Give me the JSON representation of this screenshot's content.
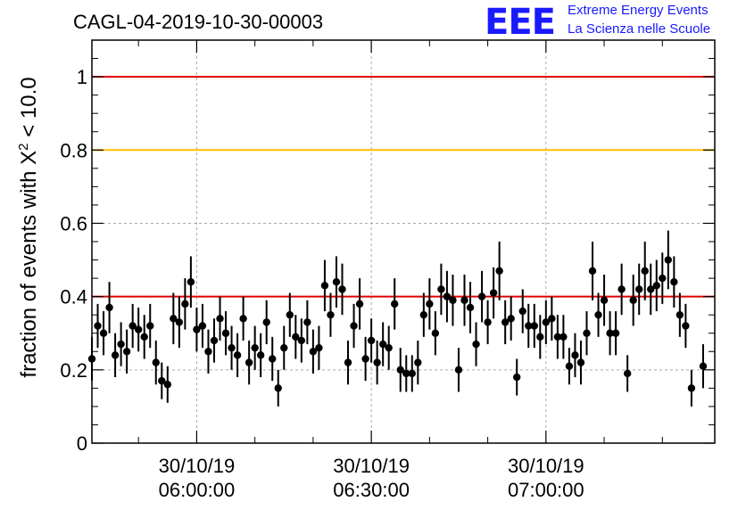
{
  "header": {
    "title": "CAGL-04-2019-10-30-00003",
    "logo_mark": "EEE",
    "logo_line1": "Extreme Energy Events",
    "logo_line2": "La Scienza nelle Scuole"
  },
  "chart_data": {
    "type": "scatter",
    "ylabel": "fraction of events with X² < 10.0",
    "ylabel_parts": {
      "pre": "fraction of events with X",
      "sup": "2",
      "post": " < 10.0"
    },
    "ylim": [
      0,
      1.1
    ],
    "yticks": [
      0,
      0.2,
      0.4,
      0.6,
      0.8,
      1
    ],
    "ytick_labels": [
      "0",
      "0.2",
      "0.4",
      "0.6",
      "0.8",
      "1"
    ],
    "xlim": [
      "05:42:00",
      "07:29:00"
    ],
    "xticks": [
      "06:00:00",
      "06:30:00",
      "07:00:00"
    ],
    "xtick_labels": [
      [
        "30/10/19",
        "06:00:00"
      ],
      [
        "30/10/19",
        "06:30:00"
      ],
      [
        "30/10/19",
        "07:00:00"
      ]
    ],
    "grid": true,
    "reference_lines": [
      {
        "y": 1.0,
        "color": "#e00000"
      },
      {
        "y": 0.8,
        "color": "#ffc000"
      },
      {
        "y": 0.4,
        "color": "#e00000"
      }
    ],
    "marker_color": "#000000",
    "series": [
      {
        "values": [
          {
            "x": "05:42:00",
            "y": 0.23,
            "err": 0.06
          },
          {
            "x": "05:43:00",
            "y": 0.32,
            "err": 0.06
          },
          {
            "x": "05:44:00",
            "y": 0.3,
            "err": 0.06
          },
          {
            "x": "05:45:00",
            "y": 0.37,
            "err": 0.07
          },
          {
            "x": "05:46:00",
            "y": 0.24,
            "err": 0.06
          },
          {
            "x": "05:47:00",
            "y": 0.27,
            "err": 0.06
          },
          {
            "x": "05:48:00",
            "y": 0.25,
            "err": 0.06
          },
          {
            "x": "05:49:00",
            "y": 0.32,
            "err": 0.06
          },
          {
            "x": "05:50:00",
            "y": 0.31,
            "err": 0.06
          },
          {
            "x": "05:51:00",
            "y": 0.29,
            "err": 0.06
          },
          {
            "x": "05:52:00",
            "y": 0.32,
            "err": 0.06
          },
          {
            "x": "05:53:00",
            "y": 0.22,
            "err": 0.06
          },
          {
            "x": "05:54:00",
            "y": 0.17,
            "err": 0.05
          },
          {
            "x": "05:55:00",
            "y": 0.16,
            "err": 0.05
          },
          {
            "x": "05:56:00",
            "y": 0.34,
            "err": 0.07
          },
          {
            "x": "05:57:00",
            "y": 0.33,
            "err": 0.07
          },
          {
            "x": "05:58:00",
            "y": 0.38,
            "err": 0.07
          },
          {
            "x": "05:59:00",
            "y": 0.44,
            "err": 0.07
          },
          {
            "x": "06:00:00",
            "y": 0.31,
            "err": 0.06
          },
          {
            "x": "06:01:00",
            "y": 0.32,
            "err": 0.06
          },
          {
            "x": "06:02:00",
            "y": 0.25,
            "err": 0.06
          },
          {
            "x": "06:03:00",
            "y": 0.28,
            "err": 0.06
          },
          {
            "x": "06:04:00",
            "y": 0.34,
            "err": 0.06
          },
          {
            "x": "06:05:00",
            "y": 0.3,
            "err": 0.06
          },
          {
            "x": "06:06:00",
            "y": 0.26,
            "err": 0.06
          },
          {
            "x": "06:07:00",
            "y": 0.24,
            "err": 0.06
          },
          {
            "x": "06:08:00",
            "y": 0.34,
            "err": 0.06
          },
          {
            "x": "06:09:00",
            "y": 0.22,
            "err": 0.06
          },
          {
            "x": "06:10:00",
            "y": 0.26,
            "err": 0.06
          },
          {
            "x": "06:11:00",
            "y": 0.24,
            "err": 0.06
          },
          {
            "x": "06:12:00",
            "y": 0.33,
            "err": 0.06
          },
          {
            "x": "06:13:00",
            "y": 0.23,
            "err": 0.06
          },
          {
            "x": "06:14:00",
            "y": 0.15,
            "err": 0.05
          },
          {
            "x": "06:15:00",
            "y": 0.26,
            "err": 0.06
          },
          {
            "x": "06:16:00",
            "y": 0.35,
            "err": 0.06
          },
          {
            "x": "06:17:00",
            "y": 0.29,
            "err": 0.06
          },
          {
            "x": "06:18:00",
            "y": 0.28,
            "err": 0.06
          },
          {
            "x": "06:19:00",
            "y": 0.33,
            "err": 0.06
          },
          {
            "x": "06:20:00",
            "y": 0.25,
            "err": 0.06
          },
          {
            "x": "06:21:00",
            "y": 0.26,
            "err": 0.06
          },
          {
            "x": "06:22:00",
            "y": 0.43,
            "err": 0.07
          },
          {
            "x": "06:23:00",
            "y": 0.35,
            "err": 0.06
          },
          {
            "x": "06:24:00",
            "y": 0.44,
            "err": 0.07
          },
          {
            "x": "06:25:00",
            "y": 0.42,
            "err": 0.07
          },
          {
            "x": "06:26:00",
            "y": 0.22,
            "err": 0.06
          },
          {
            "x": "06:27:00",
            "y": 0.32,
            "err": 0.06
          },
          {
            "x": "06:28:00",
            "y": 0.38,
            "err": 0.07
          },
          {
            "x": "06:29:00",
            "y": 0.23,
            "err": 0.06
          },
          {
            "x": "06:30:00",
            "y": 0.28,
            "err": 0.06
          },
          {
            "x": "06:31:00",
            "y": 0.22,
            "err": 0.06
          },
          {
            "x": "06:32:00",
            "y": 0.27,
            "err": 0.06
          },
          {
            "x": "06:33:00",
            "y": 0.26,
            "err": 0.06
          },
          {
            "x": "06:34:00",
            "y": 0.38,
            "err": 0.07
          },
          {
            "x": "06:35:00",
            "y": 0.2,
            "err": 0.06
          },
          {
            "x": "06:36:00",
            "y": 0.19,
            "err": 0.05
          },
          {
            "x": "06:37:00",
            "y": 0.19,
            "err": 0.05
          },
          {
            "x": "06:38:00",
            "y": 0.22,
            "err": 0.06
          },
          {
            "x": "06:39:00",
            "y": 0.35,
            "err": 0.06
          },
          {
            "x": "06:40:00",
            "y": 0.38,
            "err": 0.07
          },
          {
            "x": "06:41:00",
            "y": 0.3,
            "err": 0.06
          },
          {
            "x": "06:42:00",
            "y": 0.42,
            "err": 0.07
          },
          {
            "x": "06:43:00",
            "y": 0.4,
            "err": 0.07
          },
          {
            "x": "06:44:00",
            "y": 0.39,
            "err": 0.07
          },
          {
            "x": "06:45:00",
            "y": 0.2,
            "err": 0.06
          },
          {
            "x": "06:46:00",
            "y": 0.39,
            "err": 0.07
          },
          {
            "x": "06:47:00",
            "y": 0.37,
            "err": 0.07
          },
          {
            "x": "06:48:00",
            "y": 0.27,
            "err": 0.06
          },
          {
            "x": "06:49:00",
            "y": 0.4,
            "err": 0.07
          },
          {
            "x": "06:50:00",
            "y": 0.33,
            "err": 0.06
          },
          {
            "x": "06:51:00",
            "y": 0.41,
            "err": 0.07
          },
          {
            "x": "06:52:00",
            "y": 0.47,
            "err": 0.08
          },
          {
            "x": "06:53:00",
            "y": 0.33,
            "err": 0.06
          },
          {
            "x": "06:54:00",
            "y": 0.34,
            "err": 0.06
          },
          {
            "x": "06:55:00",
            "y": 0.18,
            "err": 0.05
          },
          {
            "x": "06:56:00",
            "y": 0.36,
            "err": 0.06
          },
          {
            "x": "06:57:00",
            "y": 0.32,
            "err": 0.06
          },
          {
            "x": "06:58:00",
            "y": 0.32,
            "err": 0.06
          },
          {
            "x": "06:59:00",
            "y": 0.29,
            "err": 0.06
          },
          {
            "x": "07:00:00",
            "y": 0.33,
            "err": 0.06
          },
          {
            "x": "07:01:00",
            "y": 0.34,
            "err": 0.06
          },
          {
            "x": "07:02:00",
            "y": 0.29,
            "err": 0.06
          },
          {
            "x": "07:03:00",
            "y": 0.29,
            "err": 0.06
          },
          {
            "x": "07:04:00",
            "y": 0.21,
            "err": 0.05
          },
          {
            "x": "07:05:00",
            "y": 0.24,
            "err": 0.06
          },
          {
            "x": "07:06:00",
            "y": 0.22,
            "err": 0.06
          },
          {
            "x": "07:07:00",
            "y": 0.3,
            "err": 0.06
          },
          {
            "x": "07:08:00",
            "y": 0.47,
            "err": 0.08
          },
          {
            "x": "07:09:00",
            "y": 0.35,
            "err": 0.06
          },
          {
            "x": "07:10:00",
            "y": 0.39,
            "err": 0.07
          },
          {
            "x": "07:11:00",
            "y": 0.3,
            "err": 0.06
          },
          {
            "x": "07:12:00",
            "y": 0.3,
            "err": 0.06
          },
          {
            "x": "07:13:00",
            "y": 0.42,
            "err": 0.07
          },
          {
            "x": "07:14:00",
            "y": 0.19,
            "err": 0.05
          },
          {
            "x": "07:15:00",
            "y": 0.39,
            "err": 0.07
          },
          {
            "x": "07:16:00",
            "y": 0.42,
            "err": 0.07
          },
          {
            "x": "07:17:00",
            "y": 0.47,
            "err": 0.08
          },
          {
            "x": "07:18:00",
            "y": 0.42,
            "err": 0.07
          },
          {
            "x": "07:19:00",
            "y": 0.43,
            "err": 0.07
          },
          {
            "x": "07:20:00",
            "y": 0.45,
            "err": 0.07
          },
          {
            "x": "07:21:00",
            "y": 0.5,
            "err": 0.08
          },
          {
            "x": "07:22:00",
            "y": 0.44,
            "err": 0.07
          },
          {
            "x": "07:23:00",
            "y": 0.35,
            "err": 0.06
          },
          {
            "x": "07:24:00",
            "y": 0.32,
            "err": 0.06
          },
          {
            "x": "07:25:00",
            "y": 0.15,
            "err": 0.05
          },
          {
            "x": "07:27:00",
            "y": 0.21,
            "err": 0.06
          }
        ]
      }
    ]
  }
}
